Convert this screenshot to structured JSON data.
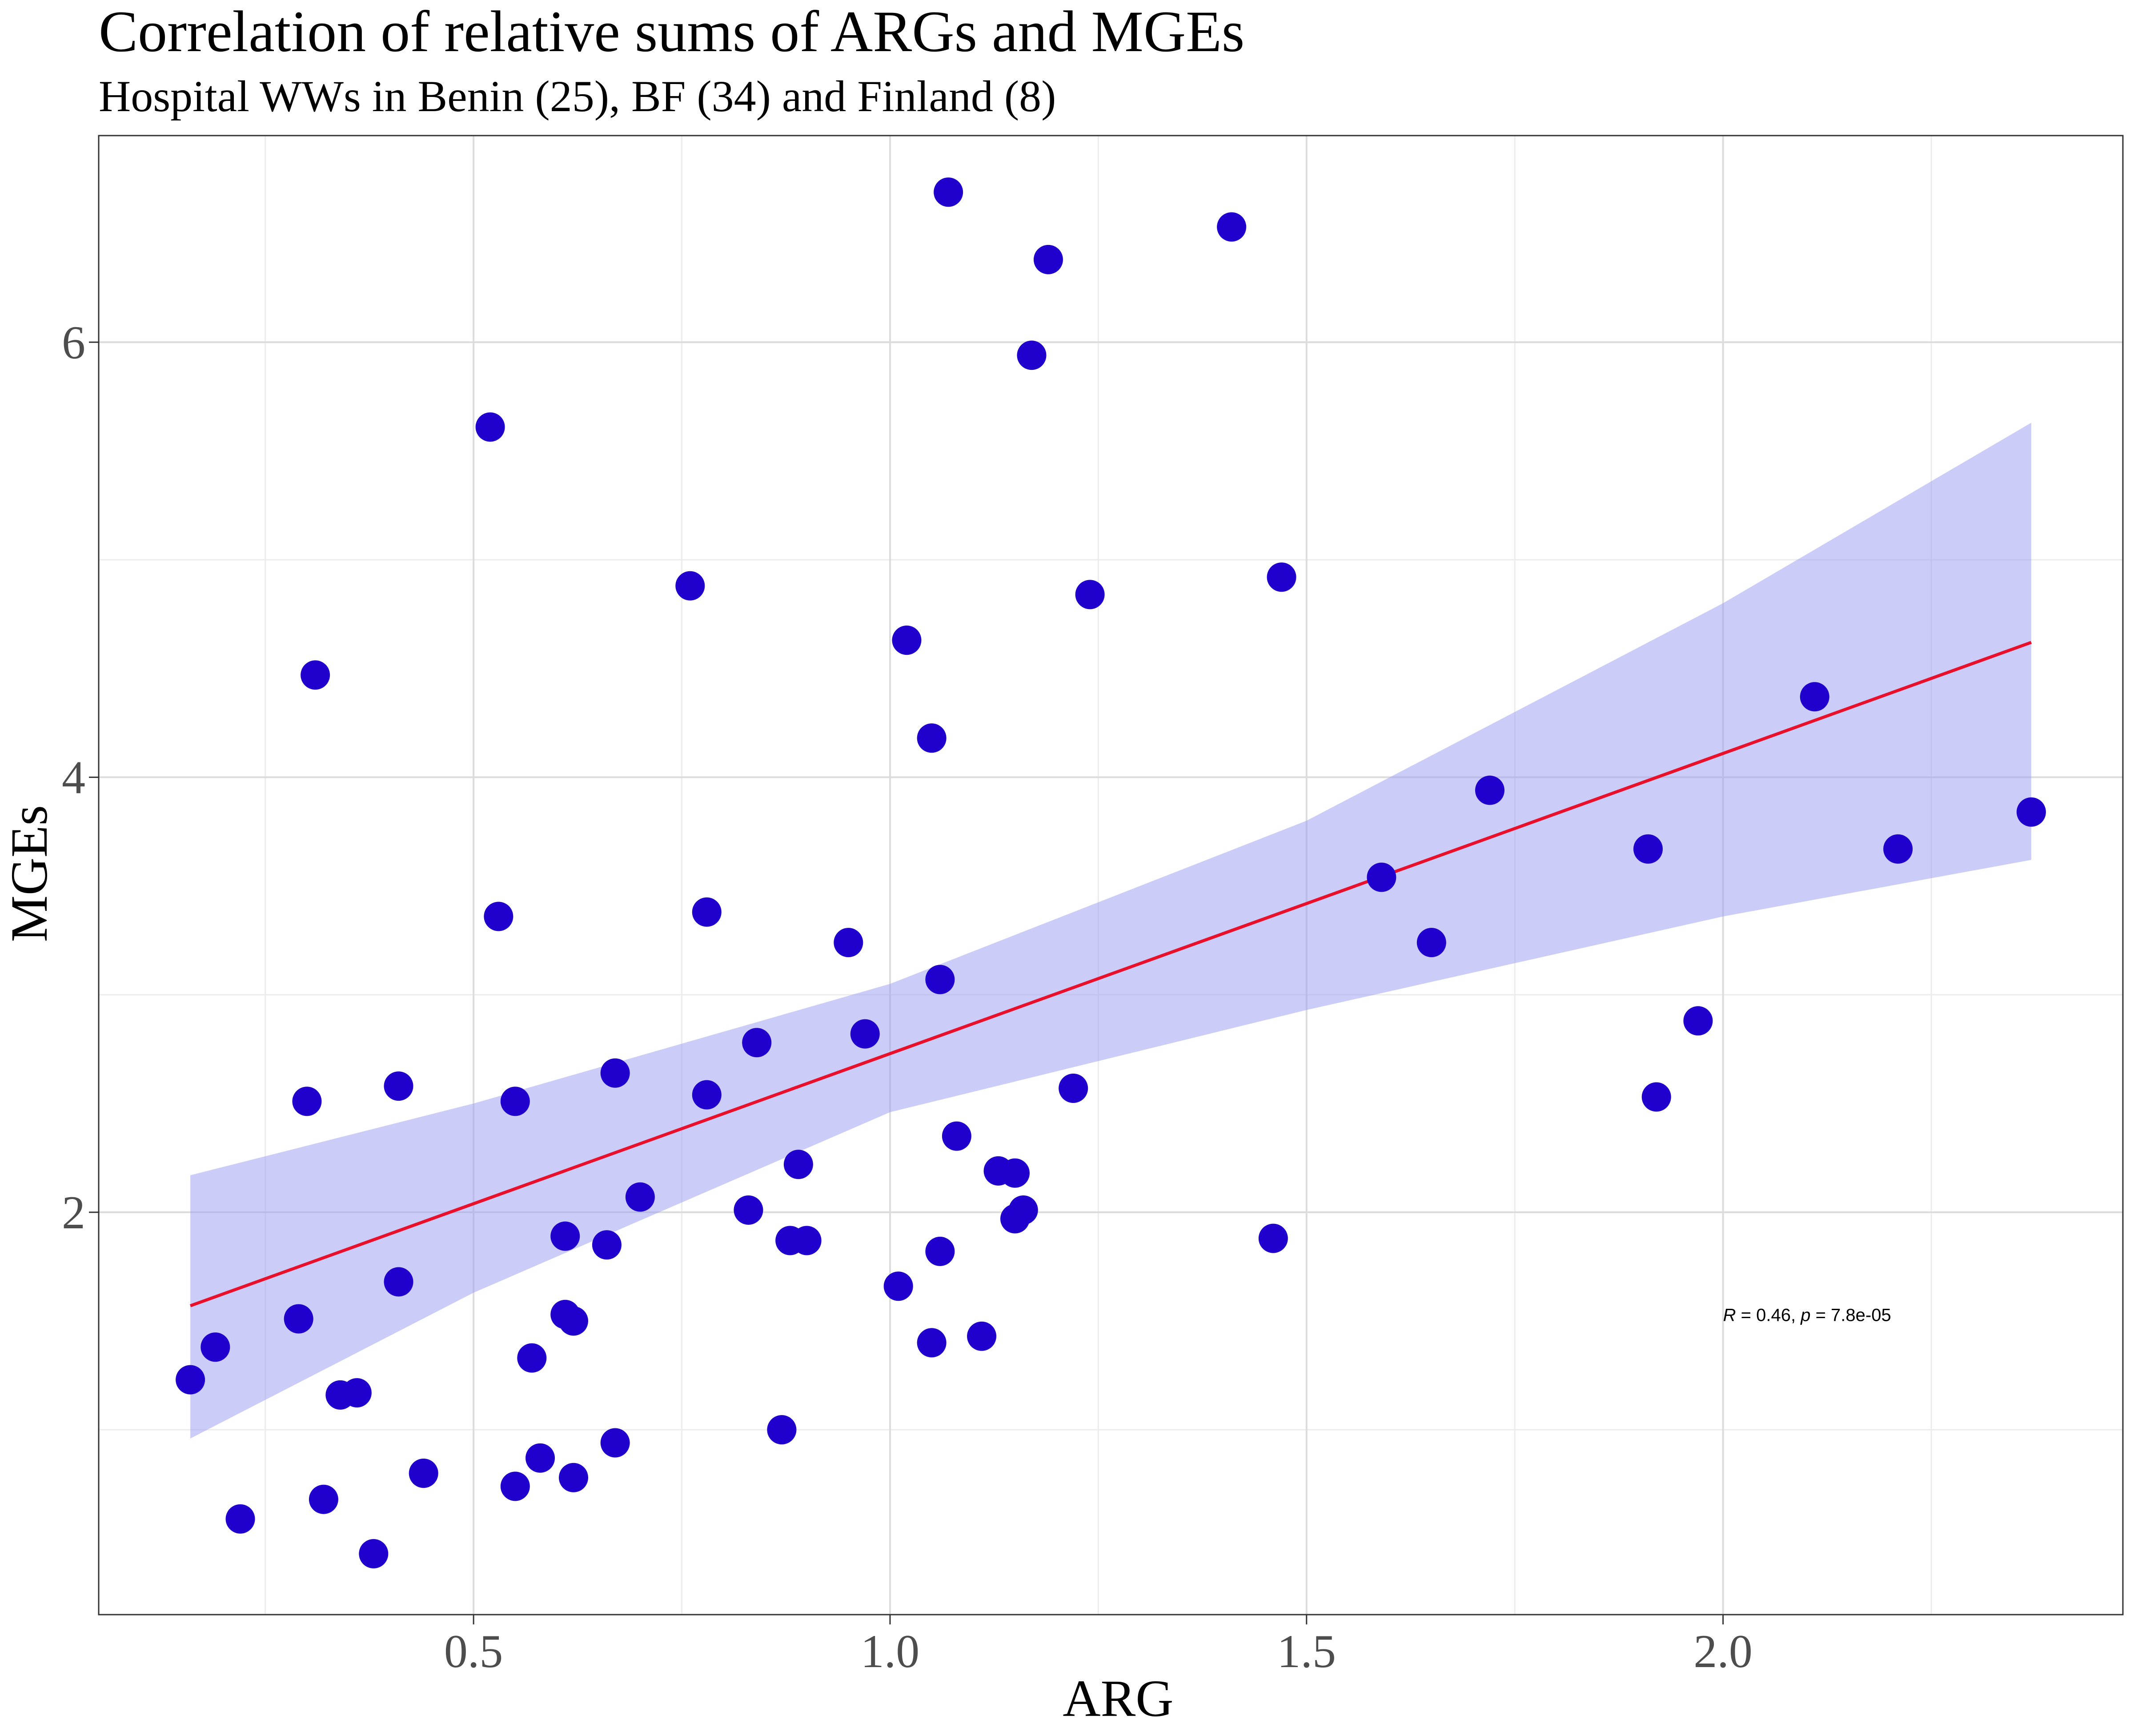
{
  "chart_data": {
    "type": "scatter",
    "title": "Correlation of relative sums of ARGs and MGEs",
    "subtitle": "Hospital WWs in Benin (25), BF (34) and Finland (8)",
    "xlabel": "ARG",
    "ylabel": "MGEs",
    "xlim": [
      0.05,
      2.48
    ],
    "ylim": [
      0.15,
      6.95
    ],
    "x_ticks": [
      0.5,
      1.0,
      1.5,
      2.0
    ],
    "x_tick_labels": [
      "0.5",
      "1.0",
      "1.5",
      "2.0"
    ],
    "y_ticks": [
      2,
      4,
      6
    ],
    "y_tick_labels": [
      "2",
      "4",
      "6"
    ],
    "x_minor_ticks": [
      0.25,
      0.75,
      1.25,
      1.75,
      2.25
    ],
    "y_minor_ticks": [
      1,
      3,
      5
    ],
    "grid": true,
    "stat_annotation": {
      "R_label": "R",
      "R_text": " = 0.46, ",
      "p_label": "p",
      "p_text": " = 7.8e-05",
      "x": 2.0,
      "y": 1.5
    },
    "regression": {
      "x_start": 0.16,
      "x_end": 2.37,
      "y_start": 1.57,
      "y_end": 4.62,
      "ci_upper": [
        [
          0.16,
          2.17
        ],
        [
          0.5,
          2.5
        ],
        [
          1.0,
          3.05
        ],
        [
          1.5,
          3.8
        ],
        [
          2.0,
          4.8
        ],
        [
          2.37,
          5.63
        ]
      ],
      "ci_lower": [
        [
          0.16,
          0.96
        ],
        [
          0.5,
          1.63
        ],
        [
          1.0,
          2.46
        ],
        [
          1.5,
          2.93
        ],
        [
          2.0,
          3.36
        ],
        [
          2.37,
          3.62
        ]
      ],
      "line_color": "#e8102a",
      "band_color": "#9999f2"
    },
    "points": [
      [
        1.07,
        6.69
      ],
      [
        1.41,
        6.53
      ],
      [
        1.19,
        6.38
      ],
      [
        1.17,
        5.94
      ],
      [
        0.52,
        5.61
      ],
      [
        1.47,
        4.92
      ],
      [
        0.76,
        4.88
      ],
      [
        1.24,
        4.84
      ],
      [
        1.02,
        4.63
      ],
      [
        0.31,
        4.47
      ],
      [
        2.11,
        4.37
      ],
      [
        1.05,
        4.18
      ],
      [
        1.72,
        3.94
      ],
      [
        2.37,
        3.84
      ],
      [
        1.91,
        3.67
      ],
      [
        2.21,
        3.67
      ],
      [
        1.59,
        3.54
      ],
      [
        0.78,
        3.38
      ],
      [
        0.53,
        3.36
      ],
      [
        0.95,
        3.24
      ],
      [
        1.65,
        3.24
      ],
      [
        1.06,
        3.07
      ],
      [
        1.97,
        2.88
      ],
      [
        0.97,
        2.82
      ],
      [
        0.84,
        2.78
      ],
      [
        0.67,
        2.64
      ],
      [
        0.41,
        2.58
      ],
      [
        1.22,
        2.57
      ],
      [
        0.78,
        2.54
      ],
      [
        1.92,
        2.53
      ],
      [
        0.3,
        2.51
      ],
      [
        0.55,
        2.51
      ],
      [
        1.08,
        2.35
      ],
      [
        0.89,
        2.22
      ],
      [
        1.13,
        2.19
      ],
      [
        1.15,
        2.18
      ],
      [
        0.7,
        2.07
      ],
      [
        0.83,
        2.01
      ],
      [
        1.16,
        2.01
      ],
      [
        1.15,
        1.97
      ],
      [
        0.61,
        1.89
      ],
      [
        1.46,
        1.88
      ],
      [
        0.88,
        1.87
      ],
      [
        0.9,
        1.87
      ],
      [
        0.66,
        1.85
      ],
      [
        1.06,
        1.82
      ],
      [
        0.41,
        1.68
      ],
      [
        1.01,
        1.66
      ],
      [
        0.61,
        1.53
      ],
      [
        0.29,
        1.51
      ],
      [
        0.62,
        1.5
      ],
      [
        1.11,
        1.43
      ],
      [
        1.05,
        1.4
      ],
      [
        0.19,
        1.38
      ],
      [
        0.57,
        1.33
      ],
      [
        0.16,
        1.23
      ],
      [
        0.34,
        1.16
      ],
      [
        0.36,
        1.17
      ],
      [
        0.87,
        1.0
      ],
      [
        0.67,
        0.94
      ],
      [
        0.58,
        0.87
      ],
      [
        0.44,
        0.8
      ],
      [
        0.62,
        0.78
      ],
      [
        0.55,
        0.74
      ],
      [
        0.32,
        0.68
      ],
      [
        0.22,
        0.59
      ],
      [
        0.38,
        0.43
      ]
    ],
    "point_color": "#2000cc"
  }
}
